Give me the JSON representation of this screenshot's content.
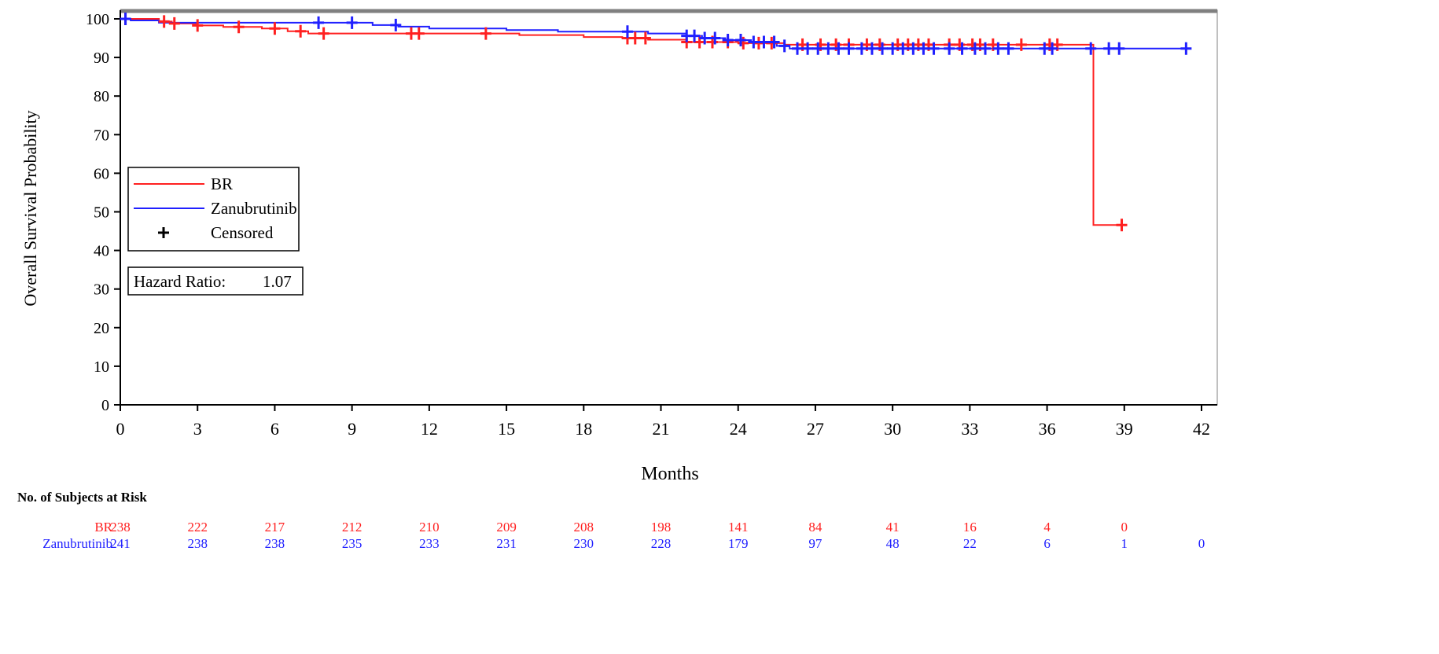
{
  "chart_data": {
    "type": "line",
    "subtype": "kaplan-meier",
    "xlabel": "Months",
    "ylabel": "Overall Survival Probability",
    "xlim": [
      0,
      42
    ],
    "ylim": [
      0,
      100
    ],
    "xticks": [
      0,
      3,
      6,
      9,
      12,
      15,
      18,
      21,
      24,
      27,
      30,
      33,
      36,
      39,
      42
    ],
    "yticks": [
      0,
      10,
      20,
      30,
      40,
      50,
      60,
      70,
      80,
      90,
      100
    ],
    "grid": false,
    "legend": {
      "placement": "left",
      "entries": [
        {
          "label": "BR",
          "color": "#ff2020",
          "kind": "line"
        },
        {
          "label": "Zanubrutinib",
          "color": "#2020ff",
          "kind": "line"
        },
        {
          "label": "Censored",
          "color": "#000000",
          "kind": "plus"
        }
      ]
    },
    "annotation": {
      "label": "Hazard Ratio:",
      "value": "1.07"
    },
    "series": [
      {
        "name": "BR",
        "color": "#ff2020",
        "steps": [
          [
            0,
            100
          ],
          [
            1.5,
            99.3
          ],
          [
            2,
            98.8
          ],
          [
            3,
            98.3
          ],
          [
            4,
            97.9
          ],
          [
            5.5,
            97.5
          ],
          [
            6.5,
            96.8
          ],
          [
            7.3,
            96.2
          ],
          [
            15.5,
            95.8
          ],
          [
            18,
            95.3
          ],
          [
            19.5,
            95
          ],
          [
            20.5,
            94.6
          ],
          [
            22,
            94
          ],
          [
            24,
            93.7
          ],
          [
            25.8,
            93.3
          ],
          [
            37.8,
            46.6
          ],
          [
            38.9,
            46.6
          ]
        ],
        "censored": [
          0.2,
          1.7,
          2.1,
          3,
          4.6,
          6,
          7,
          7.9,
          11.3,
          11.6,
          14.2,
          19.7,
          20,
          20.4,
          22,
          22.5,
          23,
          23.6,
          24.2,
          24.8,
          25.3,
          26.5,
          27.2,
          27.8,
          28.3,
          29,
          29.5,
          30.2,
          30.6,
          31,
          31.4,
          32.2,
          32.6,
          33.1,
          33.4,
          33.9,
          35,
          36.1,
          36.4,
          38.9
        ]
      },
      {
        "name": "Zanubrutinib",
        "color": "#2020ff",
        "steps": [
          [
            0,
            100
          ],
          [
            0.4,
            99.6
          ],
          [
            1.5,
            99
          ],
          [
            9.8,
            98.4
          ],
          [
            10.8,
            98
          ],
          [
            12,
            97.5
          ],
          [
            15,
            97.1
          ],
          [
            17,
            96.7
          ],
          [
            20.5,
            96.2
          ],
          [
            22,
            95.6
          ],
          [
            22.6,
            95
          ],
          [
            23.5,
            94.5
          ],
          [
            24.5,
            94
          ],
          [
            25.5,
            93
          ],
          [
            26,
            92.3
          ],
          [
            41.4,
            92.3
          ]
        ],
        "censored": [
          0.2,
          7.7,
          9,
          10.7,
          19.7,
          22,
          22.3,
          22.7,
          23.1,
          23.6,
          24.1,
          24.6,
          25,
          25.4,
          25.8,
          26.3,
          26.7,
          27.1,
          27.5,
          27.9,
          28.3,
          28.8,
          29.2,
          29.6,
          30,
          30.4,
          30.8,
          31.2,
          31.6,
          32.2,
          32.7,
          33.2,
          33.6,
          34.1,
          34.5,
          35.9,
          36.2,
          37.7,
          38.4,
          38.8,
          41.4
        ]
      }
    ],
    "risk_table": {
      "title": "No. of Subjects at Risk",
      "times": [
        0,
        3,
        6,
        9,
        12,
        15,
        18,
        21,
        24,
        27,
        30,
        33,
        36,
        39,
        42
      ],
      "rows": [
        {
          "label": "BR",
          "color": "#ff2020",
          "values": [
            "238",
            "222",
            "217",
            "212",
            "210",
            "209",
            "208",
            "198",
            "141",
            "84",
            "41",
            "16",
            "4",
            "0",
            ""
          ]
        },
        {
          "label": "Zanubrutinib",
          "color": "#2020ff",
          "values": [
            "241",
            "238",
            "238",
            "235",
            "233",
            "231",
            "230",
            "228",
            "179",
            "97",
            "48",
            "22",
            "6",
            "1",
            "0"
          ]
        }
      ]
    }
  }
}
